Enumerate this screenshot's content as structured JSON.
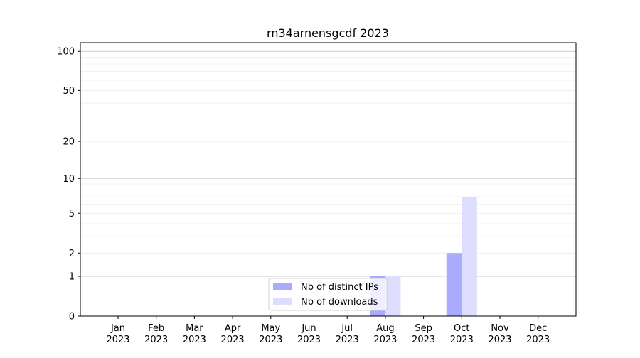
{
  "chart_data": {
    "type": "bar",
    "title": "rn34arnensgcdf 2023",
    "xlabel": "",
    "ylabel": "",
    "y_scale": "log(1+y)",
    "ylim": [
      0,
      116
    ],
    "yticks": [
      0,
      1,
      2,
      5,
      10,
      20,
      50,
      100
    ],
    "categories": [
      "Jan\n2023",
      "Feb\n2023",
      "Mar\n2023",
      "Apr\n2023",
      "May\n2023",
      "Jun\n2023",
      "Jul\n2023",
      "Aug\n2023",
      "Sep\n2023",
      "Oct\n2023",
      "Nov\n2023",
      "Dec\n2023"
    ],
    "series": [
      {
        "name": "Nb of distinct IPs",
        "color": "#aaaaff",
        "values": [
          0,
          0,
          0,
          0,
          0,
          0,
          0,
          1,
          0,
          2,
          0,
          0
        ]
      },
      {
        "name": "Nb of downloads",
        "color": "#ddddff",
        "values": [
          0,
          0,
          0,
          0,
          0,
          0,
          0,
          1,
          0,
          7,
          0,
          0
        ]
      }
    ],
    "grid": "horizontal, major and minor",
    "legend": "lower-center"
  }
}
